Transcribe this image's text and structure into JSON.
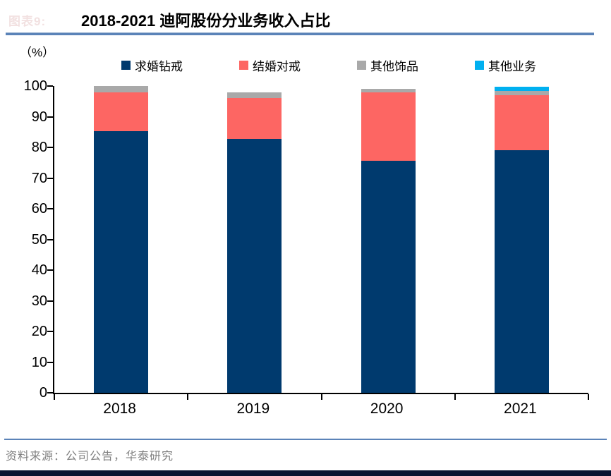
{
  "figure_label": "图表9:",
  "header": {
    "title": "2018-2021 迪阿股份分业务收入占比"
  },
  "axis": {
    "unit_label": "（%）"
  },
  "legend": {
    "items": [
      {
        "label": "求婚钻戒",
        "color": "#003a6e"
      },
      {
        "label": "结婚对戒",
        "color": "#fd6663"
      },
      {
        "label": "其他饰品",
        "color": "#a9a9a9"
      },
      {
        "label": "其他业务",
        "color": "#00b0f0"
      }
    ]
  },
  "chart_data": {
    "type": "bar",
    "stacked": true,
    "title": "2018-2021 迪阿股份分业务收入占比",
    "ylabel": "（%）",
    "categories": [
      "2018",
      "2019",
      "2020",
      "2021"
    ],
    "series": [
      {
        "name": "求婚钻戒",
        "color": "#003a6e",
        "values": [
          85.4,
          82.7,
          75.6,
          79.0
        ]
      },
      {
        "name": "结婚对戒",
        "color": "#fd6663",
        "values": [
          12.6,
          13.4,
          22.3,
          18.0
        ]
      },
      {
        "name": "其他饰品",
        "color": "#a9a9a9",
        "values": [
          2.0,
          1.8,
          1.3,
          1.5
        ]
      },
      {
        "name": "其他业务",
        "color": "#00b0f0",
        "values": [
          0.0,
          0.0,
          0.0,
          1.3
        ]
      }
    ],
    "ylim": [
      0,
      100
    ],
    "yticks": [
      0,
      10,
      20,
      30,
      40,
      50,
      60,
      70,
      80,
      90,
      100
    ],
    "grid": false,
    "legend_position": "top"
  },
  "footer": {
    "source": "资料来源：公司公告，华泰研究"
  },
  "colors": {
    "title_rule": "#5b83b8",
    "divider": "#5b83b8",
    "bottom_strip": "#0a1433",
    "source_text": "#808080"
  }
}
